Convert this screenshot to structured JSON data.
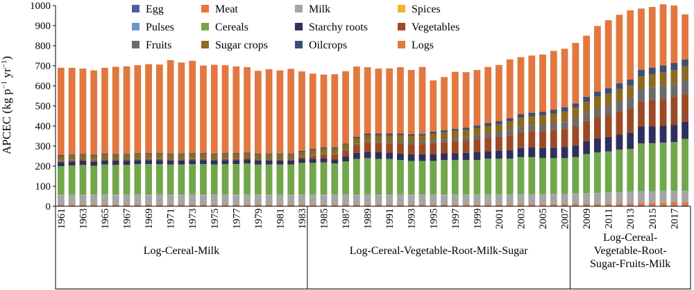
{
  "chart_data": {
    "type": "bar",
    "stacked": true,
    "ylabel": "APCEC (kg p",
    "ylabel_sup1": "−1",
    "ylabel_mid": " yr",
    "ylabel_sup2": "−1",
    "ylabel_end": ")",
    "ylim": [
      0,
      1000
    ],
    "yticks": [
      0,
      100,
      200,
      300,
      400,
      500,
      600,
      700,
      800,
      900,
      1000
    ],
    "xtick_labels": [
      "1961",
      "1963",
      "1965",
      "1967",
      "1969",
      "1971",
      "1973",
      "1975",
      "1977",
      "1979",
      "1981",
      "1983",
      "1985",
      "1987",
      "1989",
      "1991",
      "1993",
      "1995",
      "1997",
      "1999",
      "2001",
      "2003",
      "2005",
      "2007",
      "2009",
      "2011",
      "2013",
      "2015",
      "2017"
    ],
    "categories": [
      1961,
      1962,
      1963,
      1964,
      1965,
      1966,
      1967,
      1968,
      1969,
      1970,
      1971,
      1972,
      1973,
      1974,
      1975,
      1976,
      1977,
      1978,
      1979,
      1980,
      1981,
      1982,
      1983,
      1984,
      1985,
      1986,
      1987,
      1988,
      1989,
      1990,
      1991,
      1992,
      1993,
      1994,
      1995,
      1996,
      1997,
      1998,
      1999,
      2000,
      2001,
      2002,
      2003,
      2004,
      2005,
      2006,
      2007,
      2008,
      2009,
      2010,
      2011,
      2012,
      2013,
      2014,
      2015,
      2016,
      2017,
      2018
    ],
    "legend": {
      "placement": "top",
      "entries": [
        "Egg",
        "Meat",
        "Milk",
        "Spices",
        "Pulses",
        "Cereals",
        "Starchy roots",
        "Vegetables",
        "Fruits",
        "Sugar crops",
        "Oilcrops",
        "Logs"
      ]
    },
    "groups": [
      {
        "label": "Log-Cereal-Milk",
        "lines": [
          "Log-Cereal-Milk"
        ],
        "start": 1961,
        "end": 1983
      },
      {
        "label": "Log-Cereal-Vegetable-Root-Milk-Sugar",
        "lines": [
          "Log-Cereal-Vegetable-Root-Milk-Sugar"
        ],
        "start": 1984,
        "end": 2007
      },
      {
        "label": "Log-Cereal-Vegetable-Root-Sugar-Fruits-Milk",
        "lines": [
          "Log-Cereal-",
          "Vegetable-Root-",
          "Sugar-Fruits-Milk"
        ],
        "start": 2008,
        "end": 2018
      }
    ],
    "series": [
      {
        "name": "Egg",
        "color": "#4a5fa6",
        "values": [
          2,
          2,
          2,
          2,
          2,
          2,
          2,
          2,
          2,
          2,
          2,
          2,
          2,
          2,
          2,
          2,
          2,
          2,
          2,
          2,
          2,
          2,
          2,
          2,
          2,
          2,
          2,
          2,
          2,
          2,
          2,
          2,
          2,
          2,
          2,
          2,
          2,
          2,
          2,
          2,
          2,
          2,
          2,
          2,
          2,
          3,
          3,
          3,
          3,
          3,
          3,
          3,
          3,
          3,
          3,
          3,
          3,
          3
        ]
      },
      {
        "name": "Meat",
        "color": "#e8743b",
        "values": [
          5,
          5,
          5,
          5,
          5,
          5,
          5,
          5,
          5,
          5,
          5,
          5,
          5,
          5,
          5,
          5,
          5,
          5,
          5,
          5,
          5,
          5,
          5,
          5,
          5,
          5,
          5,
          5,
          5,
          5,
          5,
          5,
          5,
          5,
          5,
          5,
          5,
          5,
          6,
          6,
          6,
          6,
          7,
          7,
          7,
          8,
          8,
          9,
          9,
          10,
          10,
          11,
          12,
          13,
          14,
          15,
          16,
          16
        ]
      },
      {
        "name": "Milk",
        "color": "#a5a5a5",
        "values": [
          48,
          48,
          48,
          48,
          48,
          48,
          48,
          48,
          48,
          48,
          48,
          48,
          48,
          48,
          48,
          48,
          48,
          48,
          48,
          48,
          48,
          48,
          48,
          48,
          48,
          48,
          48,
          48,
          48,
          48,
          48,
          48,
          48,
          48,
          48,
          48,
          48,
          48,
          48,
          48,
          48,
          48,
          48,
          48,
          48,
          48,
          48,
          50,
          50,
          50,
          52,
          52,
          55,
          55,
          55,
          55,
          55,
          55
        ]
      },
      {
        "name": "Spices",
        "color": "#f2b233",
        "values": [
          1,
          1,
          1,
          1,
          1,
          1,
          1,
          1,
          1,
          1,
          1,
          1,
          1,
          1,
          1,
          1,
          1,
          1,
          1,
          1,
          1,
          1,
          1,
          1,
          1,
          1,
          1,
          1,
          1,
          1,
          1,
          1,
          1,
          1,
          1,
          1,
          1,
          1,
          1,
          1,
          1,
          1,
          1,
          1,
          1,
          1,
          1,
          1,
          1,
          1,
          1,
          1,
          1,
          1,
          1,
          1,
          1,
          1
        ]
      },
      {
        "name": "Pulses",
        "color": "#6a97c9",
        "values": [
          2,
          2,
          2,
          2,
          2,
          2,
          2,
          2,
          2,
          2,
          2,
          2,
          2,
          2,
          2,
          2,
          2,
          2,
          2,
          2,
          2,
          2,
          2,
          2,
          2,
          2,
          2,
          2,
          2,
          2,
          2,
          2,
          2,
          2,
          2,
          2,
          2,
          2,
          2,
          2,
          2,
          2,
          2,
          2,
          2,
          2,
          2,
          2,
          2,
          2,
          2,
          3,
          3,
          3,
          3,
          3,
          3,
          3
        ]
      },
      {
        "name": "Cereals",
        "color": "#71a74a",
        "values": [
          142,
          145,
          148,
          144,
          150,
          148,
          148,
          152,
          152,
          152,
          150,
          150,
          152,
          152,
          150,
          152,
          152,
          155,
          150,
          150,
          150,
          150,
          158,
          158,
          160,
          155,
          165,
          178,
          182,
          178,
          178,
          172,
          168,
          168,
          168,
          172,
          172,
          172,
          172,
          178,
          178,
          178,
          185,
          185,
          180,
          178,
          178,
          180,
          195,
          202,
          205,
          212,
          212,
          238,
          238,
          240,
          242,
          258
        ]
      },
      {
        "name": "Starchy roots",
        "color": "#2f2f5f",
        "values": [
          20,
          20,
          20,
          20,
          20,
          20,
          20,
          20,
          20,
          20,
          20,
          20,
          20,
          20,
          20,
          20,
          20,
          20,
          20,
          20,
          20,
          20,
          20,
          20,
          20,
          20,
          25,
          30,
          32,
          33,
          32,
          33,
          33,
          33,
          34,
          35,
          35,
          36,
          38,
          38,
          40,
          42,
          45,
          48,
          50,
          52,
          55,
          58,
          65,
          70,
          72,
          75,
          80,
          85,
          85,
          85,
          85,
          85
        ]
      },
      {
        "name": "Vegetables",
        "color": "#9c4a25",
        "values": [
          5,
          5,
          5,
          5,
          5,
          5,
          5,
          5,
          5,
          5,
          5,
          5,
          5,
          5,
          5,
          5,
          5,
          5,
          5,
          5,
          5,
          5,
          10,
          15,
          20,
          25,
          30,
          40,
          45,
          45,
          45,
          50,
          50,
          50,
          55,
          55,
          60,
          60,
          65,
          65,
          70,
          75,
          80,
          82,
          85,
          88,
          90,
          95,
          100,
          105,
          110,
          115,
          120,
          125,
          130,
          135,
          140,
          140
        ]
      },
      {
        "name": "Fruits",
        "color": "#6b6b6b",
        "values": [
          5,
          5,
          5,
          5,
          5,
          5,
          5,
          5,
          5,
          5,
          5,
          5,
          5,
          5,
          5,
          5,
          5,
          5,
          5,
          5,
          5,
          5,
          5,
          5,
          5,
          5,
          5,
          7,
          8,
          8,
          9,
          10,
          10,
          12,
          12,
          14,
          15,
          16,
          18,
          20,
          22,
          24,
          26,
          28,
          30,
          32,
          35,
          38,
          40,
          45,
          48,
          52,
          55,
          60,
          62,
          64,
          66,
          68
        ]
      },
      {
        "name": "Sugar crops",
        "color": "#8c6a22",
        "values": [
          20,
          20,
          20,
          20,
          20,
          20,
          20,
          20,
          20,
          20,
          20,
          20,
          20,
          20,
          20,
          20,
          20,
          20,
          20,
          20,
          20,
          20,
          20,
          25,
          25,
          25,
          25,
          25,
          28,
          30,
          30,
          30,
          30,
          30,
          35,
          35,
          35,
          38,
          38,
          40,
          40,
          45,
          45,
          45,
          48,
          50,
          52,
          55,
          55,
          58,
          58,
          60,
          60,
          65,
          65,
          66,
          68,
          68
        ]
      },
      {
        "name": "Oilcrops",
        "color": "#3d4f73",
        "values": [
          5,
          5,
          5,
          5,
          5,
          5,
          5,
          5,
          5,
          5,
          5,
          5,
          5,
          5,
          5,
          5,
          5,
          5,
          5,
          5,
          5,
          5,
          5,
          5,
          5,
          5,
          5,
          8,
          10,
          10,
          10,
          10,
          10,
          10,
          10,
          10,
          10,
          12,
          12,
          15,
          15,
          15,
          18,
          18,
          18,
          20,
          22,
          22,
          25,
          25,
          28,
          28,
          30,
          32,
          35,
          35,
          35,
          35
        ]
      },
      {
        "name": "Logs",
        "color": "#e2783f",
        "values": [
          435,
          432,
          425,
          420,
          427,
          434,
          436,
          438,
          443,
          441,
          465,
          453,
          460,
          436,
          442,
          438,
          432,
          425,
          412,
          420,
          414,
          422,
          396,
          375,
          363,
          365,
          360,
          350,
          330,
          324,
          325,
          330,
          320,
          333,
          255,
          265,
          285,
          276,
          277,
          279,
          280,
          294,
          284,
          285,
          285,
          292,
          291,
          301,
          305,
          327,
          338,
          342,
          345,
          305,
          302,
          304,
          286,
          224
        ]
      }
    ]
  }
}
